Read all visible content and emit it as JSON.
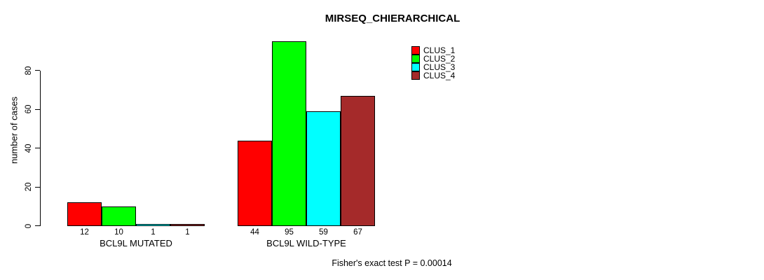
{
  "chart_data": {
    "type": "bar",
    "title": "MIRSEQ_CHIERARCHICAL",
    "xlabel": "",
    "ylabel": "number of cases",
    "ylim": [
      0,
      80
    ],
    "yticks": [
      0,
      20,
      40,
      60,
      80
    ],
    "grid": false,
    "legend_position": "top-right",
    "categories": [
      "BCL9L MUTATED",
      "BCL9L WILD-TYPE"
    ],
    "series": [
      {
        "name": "CLUS_1",
        "color": "#ff0000",
        "values": [
          12,
          44
        ]
      },
      {
        "name": "CLUS_2",
        "color": "#00ff00",
        "values": [
          10,
          95
        ]
      },
      {
        "name": "CLUS_3",
        "color": "#00ffff",
        "values": [
          1,
          59
        ]
      },
      {
        "name": "CLUS_4",
        "color": "#a52a2a",
        "values": [
          1,
          67
        ]
      }
    ],
    "bar_value_labels": true,
    "annotation": "Fisher's exact test P = 0.00014"
  }
}
